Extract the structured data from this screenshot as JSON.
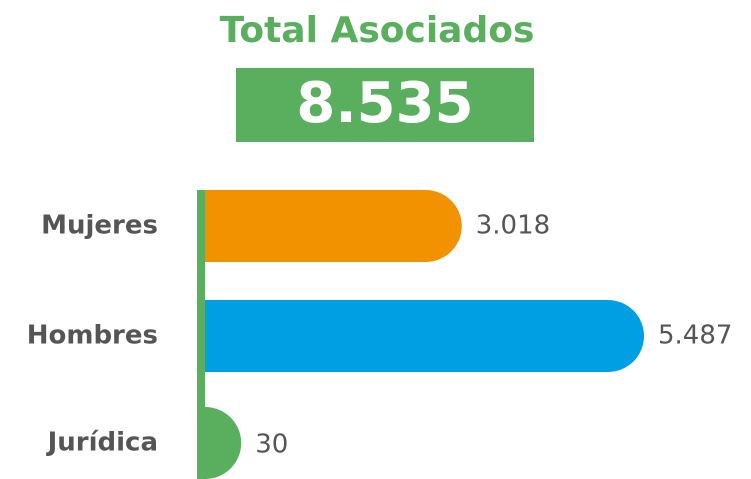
{
  "chart_data": {
    "type": "bar",
    "orientation": "horizontal",
    "title": "Total Asociados",
    "total": {
      "value": 8535,
      "label": "8.535"
    },
    "categories": [
      "Mujeres",
      "Hombres",
      "Jurídica"
    ],
    "values": [
      3018,
      5487,
      30
    ],
    "value_labels": [
      "3.018",
      "5.487",
      "30"
    ],
    "colors": [
      "#f39200",
      "#009fe3",
      "#5aaf5f"
    ],
    "axis_color": "#5aaf5f"
  }
}
